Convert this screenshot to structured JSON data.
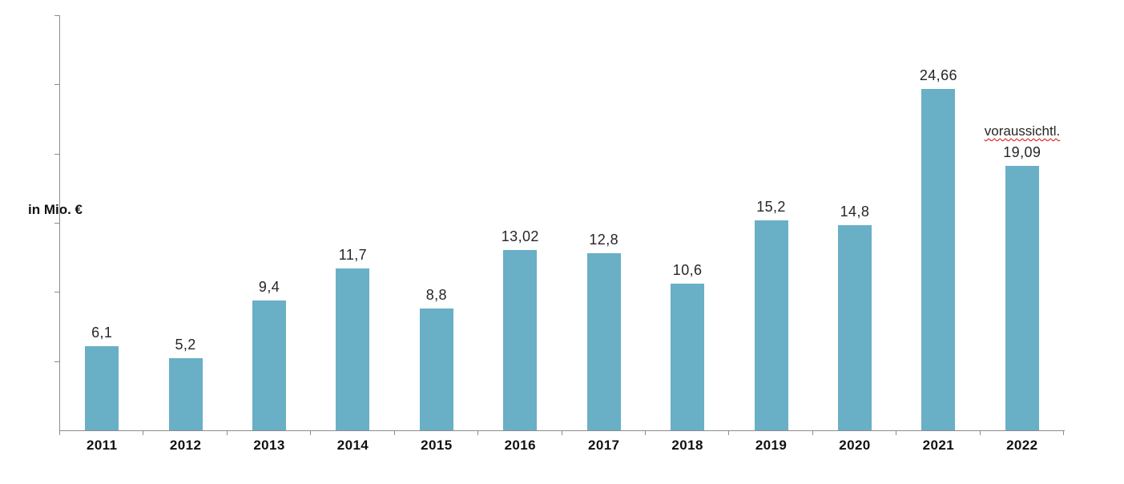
{
  "chart_data": {
    "type": "bar",
    "title": "",
    "xlabel": "",
    "ylabel": "in Mio. €",
    "categories": [
      "2011",
      "2012",
      "2013",
      "2014",
      "2015",
      "2016",
      "2017",
      "2018",
      "2019",
      "2020",
      "2021",
      "2022"
    ],
    "values": [
      6.1,
      5.2,
      9.4,
      11.7,
      8.8,
      13.02,
      12.8,
      10.6,
      15.2,
      14.8,
      24.66,
      19.09
    ],
    "value_labels": [
      "6,1",
      "5,2",
      "9,4",
      "11,7",
      "8,8",
      "13,02",
      "12,8",
      "10,6",
      "15,2",
      "14,8",
      "24,66",
      "19,09"
    ],
    "ylim": [
      0,
      30
    ],
    "y_tick_step": 5,
    "y_tick_labels_visible": false,
    "grid": false,
    "legend": false,
    "annotation": {
      "text": "voraussichtl.",
      "category": "2022",
      "style": "red-wavy-underline"
    },
    "colors": {
      "bar": "#69AFC6",
      "axis": "#8C8C8C",
      "value_label": "#262626",
      "category_label": "#111111",
      "ylabel": "#111111",
      "annotation_text": "#262626",
      "annotation_underline": "#E00000",
      "background": "#FFFFFF"
    }
  }
}
